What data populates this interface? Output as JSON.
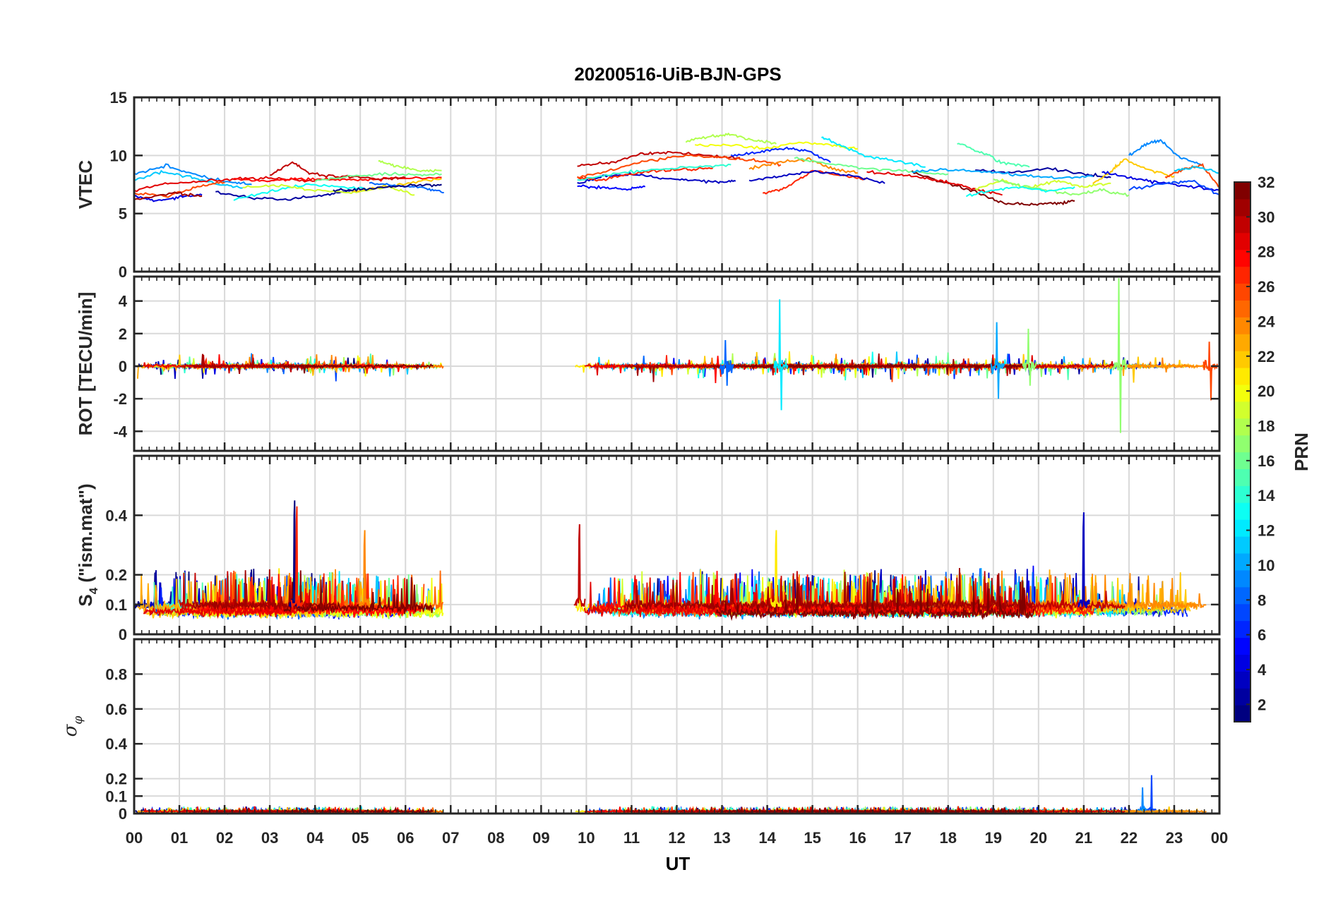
{
  "chart_data": {
    "type": "line",
    "title": "20200516-UiB-BJN-GPS",
    "xlabel": "UT",
    "x_tick_labels": [
      "00",
      "01",
      "02",
      "03",
      "04",
      "05",
      "06",
      "07",
      "08",
      "09",
      "10",
      "11",
      "12",
      "13",
      "14",
      "15",
      "16",
      "17",
      "18",
      "19",
      "20",
      "21",
      "22",
      "23",
      "00"
    ],
    "xlim": [
      0,
      24
    ],
    "data_gap_hours": [
      6.85,
      9.75
    ],
    "grid": true,
    "panels": [
      {
        "id": "vtec",
        "ylabel": "VTEC",
        "ylim": [
          0,
          15
        ],
        "ytick_values": [
          0,
          5,
          10,
          15
        ],
        "ytick_labels": [
          "0",
          "5",
          "10",
          "15"
        ]
      },
      {
        "id": "rot",
        "ylabel": "ROT [TECU/min]",
        "ylim": [
          -5.2,
          5.5
        ],
        "ytick_values": [
          -4,
          -2,
          0,
          2,
          4
        ],
        "ytick_labels": [
          "-4",
          "-2",
          "0",
          "2",
          "4"
        ]
      },
      {
        "id": "s4",
        "ylabel_main": "S",
        "ylabel_sub": "4",
        "ylabel_rest": " (\"ism.mat\")",
        "ylim": [
          0,
          0.6
        ],
        "ytick_values": [
          0,
          0.1,
          0.2,
          0.4
        ],
        "ytick_labels": [
          "0",
          "0.1",
          "0.2",
          "0.4"
        ]
      },
      {
        "id": "sigma",
        "ylabel_main": "σ",
        "ylabel_sub": "φ",
        "ylim": [
          0,
          1.0
        ],
        "ytick_values": [
          0,
          0.1,
          0.2,
          0.4,
          0.6,
          0.8
        ],
        "ytick_labels": [
          "0",
          "0.1",
          "0.2",
          "0.4",
          "0.6",
          "0.8"
        ]
      }
    ],
    "colorbar": {
      "label": "PRN",
      "range": [
        1,
        32
      ],
      "colormap": "jet",
      "levels": 32,
      "tick_values": [
        2,
        4,
        6,
        8,
        10,
        12,
        14,
        16,
        18,
        20,
        22,
        24,
        26,
        28,
        30,
        32
      ],
      "tick_labels": [
        "2",
        "4",
        "6",
        "8",
        "10",
        "12",
        "14",
        "16",
        "18",
        "20",
        "22",
        "24",
        "26",
        "28",
        "30",
        "32"
      ]
    },
    "series_hint": "One trace per GPS satellite (PRN 1-32), colored by PRN via jet colormap",
    "vtec_traces": [
      {
        "prn": 4,
        "t": [
          0.0,
          0.5,
          1.0,
          1.5
        ],
        "v": [
          6.5,
          6.1,
          6.4,
          6.6
        ]
      },
      {
        "prn": 9,
        "t": [
          0.0,
          0.7,
          1.4,
          2.1,
          2.6
        ],
        "v": [
          8.4,
          9.1,
          8.3,
          7.7,
          7.5
        ]
      },
      {
        "prn": 11,
        "t": [
          0.0,
          0.6,
          1.2,
          1.8,
          2.4
        ],
        "v": [
          7.9,
          8.6,
          8.2,
          7.6,
          7.2
        ]
      },
      {
        "prn": 29,
        "t": [
          0.0,
          0.8,
          1.6,
          2.4,
          3.2,
          4.0
        ],
        "v": [
          7.0,
          7.6,
          7.8,
          8.0,
          8.0,
          7.8
        ]
      },
      {
        "prn": 26,
        "t": [
          0.0,
          0.7,
          1.4,
          2.0
        ],
        "v": [
          6.8,
          6.5,
          7.3,
          7.7
        ]
      },
      {
        "prn": 31,
        "t": [
          0.0,
          0.9,
          1.5
        ],
        "v": [
          6.2,
          6.8,
          6.5
        ]
      },
      {
        "prn": 2,
        "t": [
          1.8,
          2.6,
          3.4,
          4.2,
          4.8
        ],
        "v": [
          6.8,
          6.4,
          6.2,
          6.6,
          7.0
        ]
      },
      {
        "prn": 13,
        "t": [
          2.2,
          3.0,
          3.8,
          4.6,
          5.2
        ],
        "v": [
          6.2,
          6.9,
          7.5,
          7.3,
          7.1
        ]
      },
      {
        "prn": 19,
        "t": [
          2.4,
          3.2,
          4.0,
          4.8,
          5.6,
          6.2
        ],
        "v": [
          7.3,
          7.4,
          7.0,
          6.8,
          7.3,
          6.6
        ]
      },
      {
        "prn": 28,
        "t": [
          2.2,
          3.0,
          3.6,
          4.3,
          5.0,
          5.8,
          6.8
        ],
        "v": [
          8.0,
          7.8,
          8.0,
          7.9,
          7.9,
          8.0,
          8.1
        ]
      },
      {
        "prn": 30,
        "t": [
          3.0,
          3.5,
          3.9,
          4.6,
          5.4,
          6.0
        ],
        "v": [
          8.3,
          9.4,
          8.4,
          8.2,
          8.0,
          8.1
        ]
      },
      {
        "prn": 16,
        "t": [
          4.0,
          4.8,
          5.6,
          6.2,
          6.8
        ],
        "v": [
          7.8,
          8.2,
          8.4,
          8.3,
          8.4
        ]
      },
      {
        "prn": 18,
        "t": [
          5.4,
          5.8,
          6.3,
          6.8
        ],
        "v": [
          9.5,
          9.1,
          8.7,
          8.7
        ]
      },
      {
        "prn": 22,
        "t": [
          4.8,
          5.4,
          6.0,
          6.8
        ],
        "v": [
          6.9,
          7.2,
          7.6,
          8.0
        ]
      },
      {
        "prn": 8,
        "t": [
          5.2,
          5.8,
          6.4,
          6.85
        ],
        "v": [
          7.6,
          7.4,
          7.2,
          6.8
        ]
      },
      {
        "prn": 1,
        "t": [
          4.4,
          5.0,
          5.6,
          6.2,
          6.8
        ],
        "v": [
          7.0,
          7.1,
          7.3,
          7.4,
          7.5
        ]
      },
      {
        "prn": 3,
        "t": [
          9.8,
          10.4,
          11.0,
          11.6,
          12.2,
          12.9,
          13.3
        ],
        "v": [
          7.6,
          8.2,
          8.4,
          8.1,
          7.9,
          7.7,
          7.8
        ]
      },
      {
        "prn": 5,
        "t": [
          9.8,
          10.4,
          10.9,
          11.3
        ],
        "v": [
          7.4,
          7.2,
          7.1,
          7.3
        ]
      },
      {
        "prn": 27,
        "t": [
          9.8,
          10.3,
          10.9,
          11.5,
          12.2,
          12.8
        ],
        "v": [
          8.1,
          7.9,
          8.3,
          8.7,
          8.8,
          8.9
        ]
      },
      {
        "prn": 30,
        "t": [
          9.8,
          10.5,
          11.2,
          11.8,
          12.6,
          13.4
        ],
        "v": [
          9.1,
          9.4,
          10.1,
          10.3,
          10.0,
          9.8
        ]
      },
      {
        "prn": 26,
        "t": [
          9.8,
          10.6,
          11.4,
          12.2,
          13.0,
          13.7,
          14.3
        ],
        "v": [
          8.1,
          8.8,
          9.6,
          10.0,
          9.8,
          9.6,
          9.2
        ]
      },
      {
        "prn": 14,
        "t": [
          9.8,
          10.6,
          11.5,
          12.4,
          13.2
        ],
        "v": [
          7.9,
          8.4,
          8.8,
          9.0,
          9.2
        ]
      },
      {
        "prn": 18,
        "t": [
          12.2,
          12.8,
          13.2,
          13.7,
          14.2
        ],
        "v": [
          11.2,
          11.7,
          11.8,
          11.3,
          11.0
        ]
      },
      {
        "prn": 20,
        "t": [
          12.4,
          13.2,
          14.0,
          14.7,
          15.4,
          16.0
        ],
        "v": [
          10.9,
          10.9,
          10.6,
          11.1,
          10.9,
          10.6
        ]
      },
      {
        "prn": 6,
        "t": [
          13.2,
          13.8,
          14.4,
          14.9,
          15.4
        ],
        "v": [
          10.0,
          10.3,
          10.6,
          10.4,
          9.4
        ]
      },
      {
        "prn": 12,
        "t": [
          15.2,
          15.6,
          16.2,
          16.8,
          17.5
        ],
        "v": [
          11.6,
          10.9,
          9.9,
          9.6,
          9.0
        ]
      },
      {
        "prn": 24,
        "t": [
          13.6,
          14.2,
          14.9,
          15.4,
          16.0
        ],
        "v": [
          8.8,
          9.4,
          9.7,
          8.9,
          8.5
        ]
      },
      {
        "prn": 27,
        "t": [
          13.9,
          14.4,
          15.0,
          15.6,
          16.2
        ],
        "v": [
          6.7,
          7.2,
          8.7,
          8.3,
          8.0
        ]
      },
      {
        "prn": 3,
        "t": [
          13.6,
          14.2,
          15.0,
          15.8,
          16.6
        ],
        "v": [
          7.8,
          8.2,
          8.6,
          8.3,
          7.6
        ]
      },
      {
        "prn": 16,
        "t": [
          14.6,
          15.4,
          16.2,
          17.2,
          18.0
        ],
        "v": [
          9.8,
          9.2,
          8.9,
          8.6,
          8.4
        ]
      },
      {
        "prn": 15,
        "t": [
          18.2,
          18.7,
          19.2,
          19.8
        ],
        "v": [
          11.1,
          10.3,
          9.4,
          9.0
        ]
      },
      {
        "prn": 32,
        "t": [
          17.2,
          17.9,
          18.6,
          19.2,
          19.8,
          20.4,
          20.8
        ],
        "v": [
          8.6,
          7.7,
          6.9,
          5.9,
          5.8,
          5.9,
          6.1
        ]
      },
      {
        "prn": 29,
        "t": [
          16.2,
          16.8,
          17.4,
          18.0,
          18.6,
          19.2
        ],
        "v": [
          8.6,
          8.4,
          8.1,
          7.7,
          7.1,
          6.6
        ]
      },
      {
        "prn": 2,
        "t": [
          18.6,
          19.4,
          20.2,
          21.0,
          21.6
        ],
        "v": [
          8.7,
          8.5,
          8.9,
          8.4,
          8.1
        ]
      },
      {
        "prn": 10,
        "t": [
          17.2,
          18.0,
          18.8,
          19.6,
          20.4,
          21.2
        ],
        "v": [
          8.6,
          8.8,
          8.6,
          8.3,
          8.1,
          8.2
        ]
      },
      {
        "prn": 19,
        "t": [
          18.6,
          19.2,
          19.8,
          20.4,
          21.0,
          21.6
        ],
        "v": [
          7.1,
          7.8,
          7.2,
          7.8,
          7.3,
          7.6
        ]
      },
      {
        "prn": 17,
        "t": [
          19.0,
          19.6,
          20.2,
          20.8,
          21.4,
          22.0
        ],
        "v": [
          7.9,
          7.4,
          7.0,
          6.6,
          7.0,
          6.6
        ]
      },
      {
        "prn": 13,
        "t": [
          18.4,
          19.0,
          19.6,
          20.2,
          20.8
        ],
        "v": [
          6.5,
          7.0,
          7.3,
          6.9,
          7.3
        ]
      },
      {
        "prn": 22,
        "t": [
          21.2,
          21.6,
          21.9,
          22.4,
          23.0
        ],
        "v": [
          7.6,
          8.6,
          9.7,
          8.8,
          8.2
        ]
      },
      {
        "prn": 9,
        "t": [
          22.0,
          22.4,
          22.7,
          23.1,
          23.6
        ],
        "v": [
          10.0,
          11.0,
          11.3,
          9.9,
          9.2
        ]
      },
      {
        "prn": 4,
        "t": [
          21.4,
          22.0,
          22.6,
          23.2,
          24.0
        ],
        "v": [
          8.6,
          8.1,
          7.7,
          7.4,
          7.0
        ]
      },
      {
        "prn": 26,
        "t": [
          22.8,
          23.2,
          23.6,
          24.0
        ],
        "v": [
          8.1,
          8.8,
          9.2,
          7.3
        ]
      },
      {
        "prn": 7,
        "t": [
          22.0,
          22.8,
          23.4,
          24.0
        ],
        "v": [
          7.1,
          7.6,
          7.8,
          6.6
        ]
      },
      {
        "prn": 11,
        "t": [
          23.0,
          23.5,
          24.0
        ],
        "v": [
          8.7,
          9.0,
          8.5
        ]
      }
    ],
    "rot_spikes": [
      {
        "prn": 12,
        "t": 14.3,
        "v": 4.1,
        "v_min": -2.7
      },
      {
        "prn": 10,
        "t": 19.1,
        "v": 2.7,
        "v_min": -2.0
      },
      {
        "prn": 17,
        "t": 19.8,
        "v": 2.3,
        "v_min": -1.2
      },
      {
        "prn": 17,
        "t": 21.8,
        "v": 5.4,
        "v_min": -4.1
      },
      {
        "prn": 26,
        "t": 23.8,
        "v": 1.5,
        "v_min": -2.1
      },
      {
        "prn": 8,
        "t": 13.1,
        "v": 1.6,
        "v_min": -1.2
      }
    ],
    "s4_peaks": [
      {
        "prn": 1,
        "t": 3.55,
        "v": 0.45
      },
      {
        "prn": 27,
        "t": 3.6,
        "v": 0.43
      },
      {
        "prn": 24,
        "t": 5.1,
        "v": 0.35
      },
      {
        "prn": 30,
        "t": 9.85,
        "v": 0.37
      },
      {
        "prn": 3,
        "t": 21.0,
        "v": 0.41
      },
      {
        "prn": 21,
        "t": 14.2,
        "v": 0.35
      }
    ],
    "sigma_peaks": [
      {
        "prn": 7,
        "t": 22.5,
        "v": 0.22
      },
      {
        "prn": 9,
        "t": 22.3,
        "v": 0.15
      }
    ]
  }
}
